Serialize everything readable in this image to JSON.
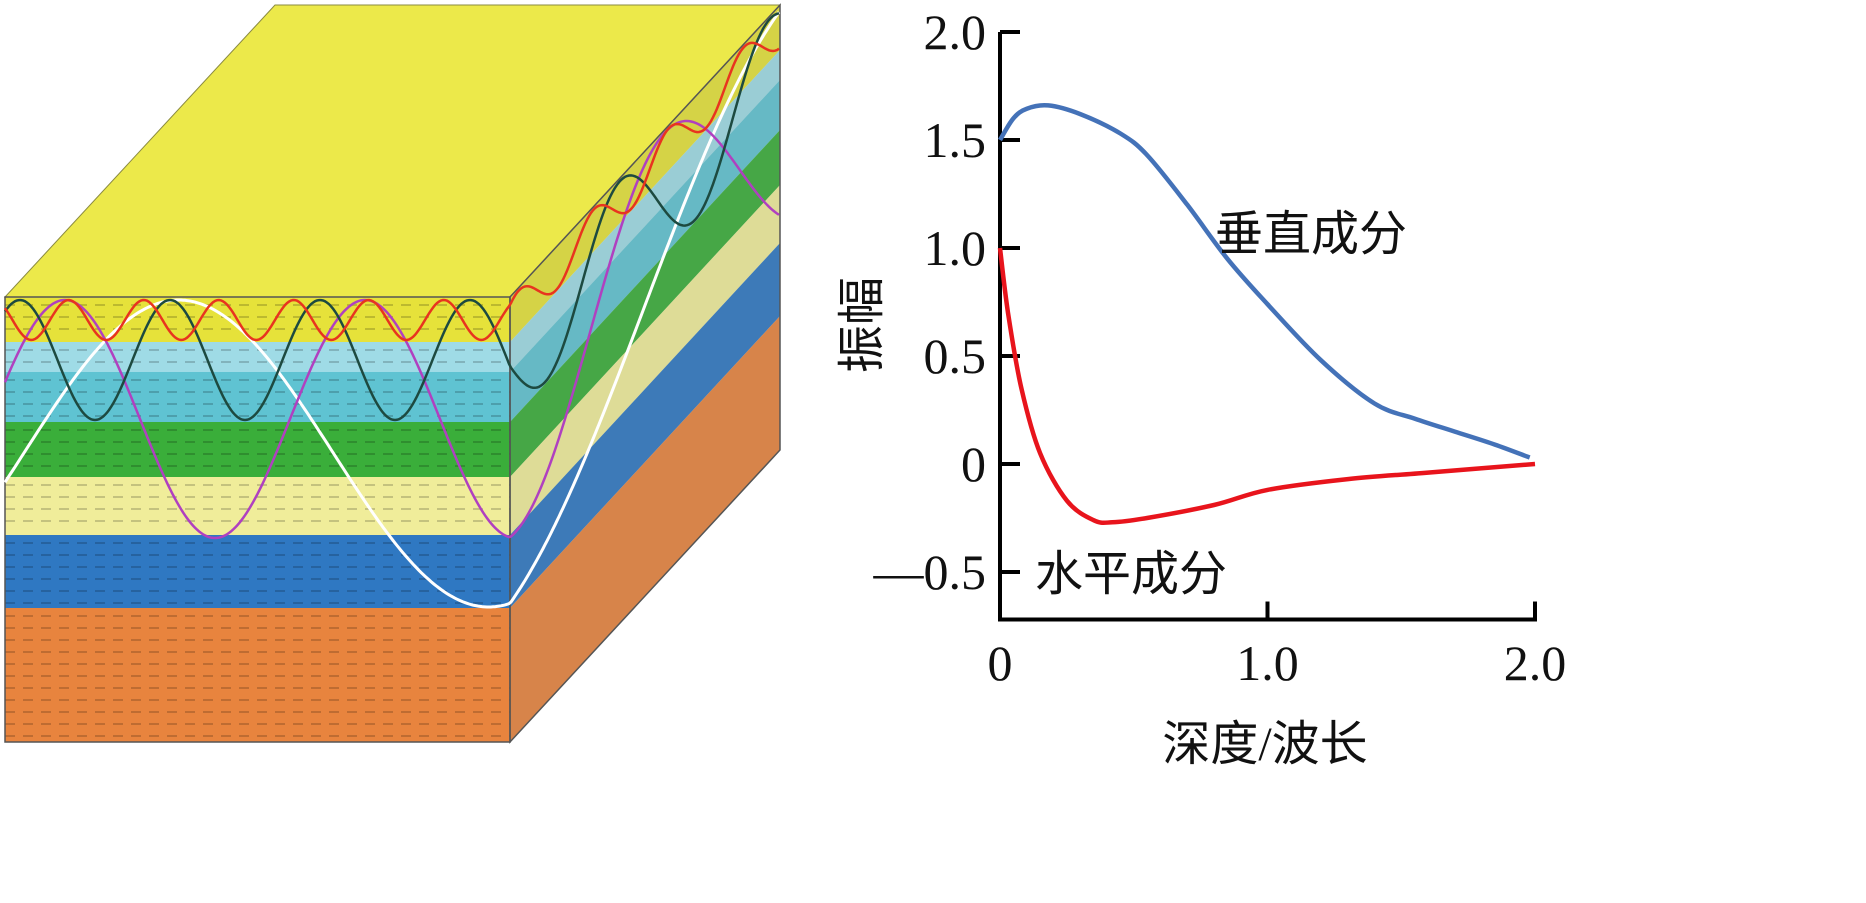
{
  "diagram": {
    "layer_colors": [
      "#e6e23a",
      "#9fdbe6",
      "#5fc3d2",
      "#3aae3a",
      "#f0ed9a",
      "#2f78c2",
      "#e8843e"
    ],
    "top_color": "#ece94a",
    "wave_colors": {
      "red": "#e8341f",
      "dark": "#1d4a40",
      "magenta": "#b040c0",
      "white": "#ffffff"
    }
  },
  "chart_data": {
    "type": "line",
    "title": "",
    "xlabel": "深度/波长",
    "ylabel": "振幅",
    "xlim": [
      0,
      2.0
    ],
    "ylim": [
      -0.72,
      2.0
    ],
    "xticks": [
      {
        "v": 0,
        "label": "0"
      },
      {
        "v": 1.0,
        "label": "1.0"
      },
      {
        "v": 2.0,
        "label": "2.0"
      }
    ],
    "yticks": [
      {
        "v": 2.0,
        "label": "2.0"
      },
      {
        "v": 1.5,
        "label": "1.5"
      },
      {
        "v": 1.0,
        "label": "1.0"
      },
      {
        "v": 0.5,
        "label": "0.5"
      },
      {
        "v": 0,
        "label": "0"
      },
      {
        "v": -0.5,
        "label": "—0.5"
      }
    ],
    "grid": false,
    "series": [
      {
        "name": "垂直成分",
        "color": "#4472b8",
        "x": [
          0,
          0.05,
          0.1,
          0.18,
          0.3,
          0.45,
          0.55,
          0.7,
          0.85,
          1.0,
          1.2,
          1.4,
          1.55,
          1.7,
          1.85,
          1.98
        ],
        "y": [
          1.5,
          1.6,
          1.645,
          1.66,
          1.62,
          1.53,
          1.43,
          1.2,
          0.95,
          0.74,
          0.48,
          0.28,
          0.21,
          0.15,
          0.09,
          0.03
        ]
      },
      {
        "name": "水平成分",
        "color": "#e8141c",
        "x": [
          0,
          0.03,
          0.08,
          0.15,
          0.25,
          0.35,
          0.42,
          0.55,
          0.8,
          1.0,
          1.3,
          1.6,
          2.0
        ],
        "y": [
          1.0,
          0.7,
          0.35,
          0.05,
          -0.17,
          -0.26,
          -0.27,
          -0.25,
          -0.19,
          -0.12,
          -0.07,
          -0.04,
          0
        ]
      }
    ]
  }
}
